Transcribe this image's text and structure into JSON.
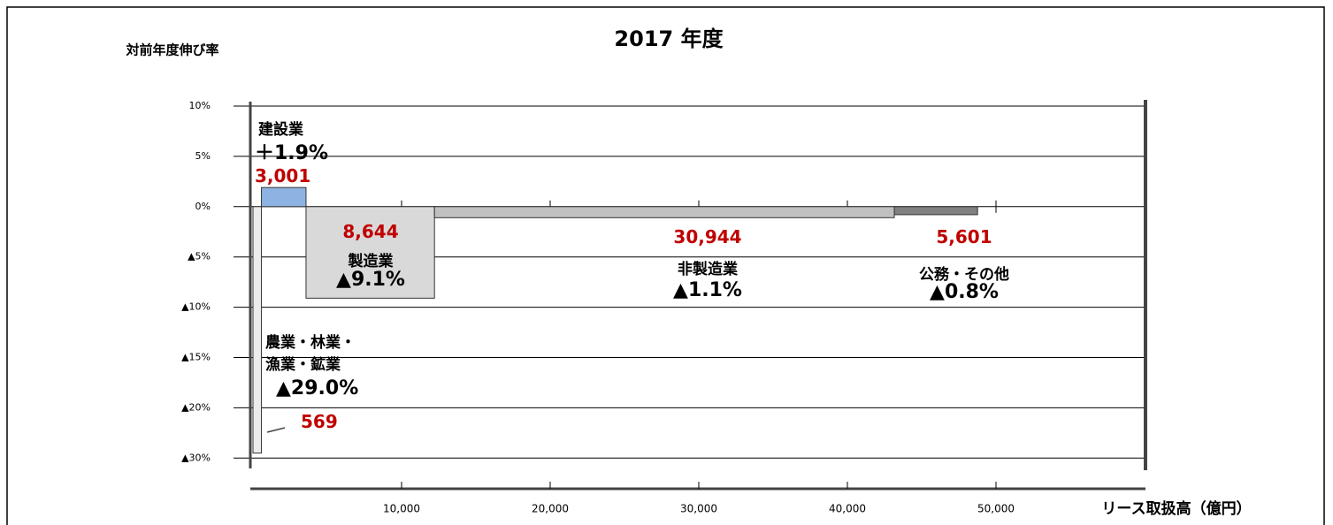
{
  "chart_data": {
    "type": "variwide-bar",
    "title": "2017 年度",
    "y_label": "対前年度伸び率",
    "x_label": "リース取扱高（億円）",
    "categories": [
      "農業・林業・漁業・鉱業",
      "建設業",
      "製造業",
      "非製造業",
      "公務・その他"
    ],
    "widths": [
      569,
      3001,
      8644,
      30944,
      5601
    ],
    "width_labels": [
      "569",
      "3,001",
      "8,644",
      "30,944",
      "5,601"
    ],
    "values": [
      -29.0,
      1.9,
      -9.1,
      -1.1,
      -0.8
    ],
    "value_labels": [
      "▲29.0%",
      "＋1.9%",
      "▲9.1%",
      "▲1.1%",
      "▲0.8%"
    ],
    "colors": [
      "#ececec",
      "#8db3e2",
      "#d9d9d9",
      "#c0c0c0",
      "#808080"
    ],
    "xlim": [
      0,
      60000
    ],
    "xticks": [
      {
        "value": 10000,
        "label": "10,000"
      },
      {
        "value": 20000,
        "label": "20,000"
      },
      {
        "value": 30000,
        "label": "30,000"
      },
      {
        "value": 40000,
        "label": "40,000"
      },
      {
        "value": 50000,
        "label": "50,000"
      }
    ],
    "yticks": [
      {
        "value": 10,
        "label": "10%"
      },
      {
        "value": 5,
        "label": "5%"
      },
      {
        "value": 0,
        "label": "0%"
      },
      {
        "value": -5,
        "label": "▲5%"
      },
      {
        "value": -10,
        "label": "▲10%"
      },
      {
        "value": -15,
        "label": "▲15%"
      },
      {
        "value": -20,
        "label": "▲20%"
      },
      {
        "value": -30,
        "label": "▲30%"
      }
    ],
    "grid": true
  }
}
